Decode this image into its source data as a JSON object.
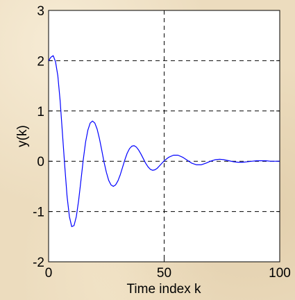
{
  "chart_data": {
    "type": "line",
    "title": "",
    "xlabel": "Time index k",
    "ylabel": "y(k)",
    "xlim": [
      0,
      100
    ],
    "ylim": [
      -2,
      3
    ],
    "x_ticks": [
      0,
      50,
      100
    ],
    "y_ticks": [
      -2,
      -1,
      0,
      1,
      2,
      3
    ],
    "x_tick_labels": [
      "0",
      "50",
      "100"
    ],
    "y_tick_labels": [
      "-2",
      "-1",
      "0",
      "1",
      "2",
      "3"
    ],
    "grid": true,
    "legend": "none",
    "series": [
      {
        "color": "#0000ff",
        "x": [
          0,
          1,
          2,
          3,
          4,
          5,
          6,
          7,
          8,
          9,
          10,
          11,
          12,
          13,
          14,
          15,
          16,
          17,
          18,
          19,
          20,
          21,
          22,
          23,
          24,
          25,
          26,
          27,
          28,
          29,
          30,
          31,
          32,
          33,
          34,
          35,
          36,
          37,
          38,
          39,
          40,
          41,
          42,
          43,
          44,
          45,
          46,
          47,
          48,
          49,
          50,
          52,
          54,
          56,
          58,
          60,
          62,
          64,
          66,
          68,
          70,
          72,
          74,
          76,
          78,
          80,
          82,
          84,
          86,
          88,
          90,
          92,
          94,
          96,
          98,
          100
        ],
        "values": [
          2.0,
          2.07,
          2.1,
          1.98,
          1.7,
          1.2,
          0.55,
          -0.1,
          -0.7,
          -1.1,
          -1.3,
          -1.28,
          -1.1,
          -0.78,
          -0.38,
          0.03,
          0.38,
          0.62,
          0.76,
          0.8,
          0.76,
          0.64,
          0.45,
          0.22,
          -0.02,
          -0.22,
          -0.38,
          -0.47,
          -0.5,
          -0.47,
          -0.39,
          -0.27,
          -0.12,
          0.03,
          0.16,
          0.25,
          0.3,
          0.31,
          0.28,
          0.22,
          0.14,
          0.05,
          -0.04,
          -0.11,
          -0.16,
          -0.18,
          -0.17,
          -0.14,
          -0.09,
          -0.04,
          0.01,
          0.08,
          0.12,
          0.12,
          0.08,
          0.02,
          -0.04,
          -0.07,
          -0.07,
          -0.04,
          0.0,
          0.03,
          0.04,
          0.03,
          0.01,
          -0.01,
          -0.02,
          -0.02,
          -0.01,
          0.0,
          0.01,
          0.01,
          0.01,
          0.0,
          0.0,
          0.0
        ]
      }
    ]
  }
}
